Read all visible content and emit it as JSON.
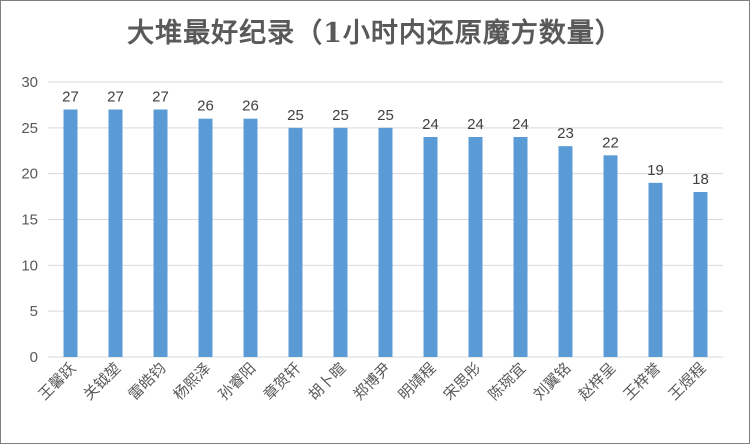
{
  "chart_data": {
    "type": "bar",
    "title": "大堆最好纪录（1小时内还原魔方数量）",
    "categories": [
      "王馨跃",
      "关钺堃",
      "雷皓钧",
      "杨熙泽",
      "孙睿阳",
      "章贺轩",
      "胡卜暄",
      "郑博尹",
      "明靖程",
      "宋思彤",
      "陈琬宜",
      "刘翼铭",
      "赵梓呈",
      "王梓誉",
      "王煜程"
    ],
    "values": [
      27,
      27,
      27,
      26,
      26,
      25,
      25,
      25,
      24,
      24,
      24,
      23,
      22,
      19,
      18
    ],
    "ylim": [
      0,
      30
    ],
    "yticks": [
      0,
      5,
      10,
      15,
      20,
      25,
      30
    ],
    "grid": true,
    "data_labels": true,
    "bar_color": "#5b9bd5",
    "grid_color": "#d9d9d9"
  }
}
